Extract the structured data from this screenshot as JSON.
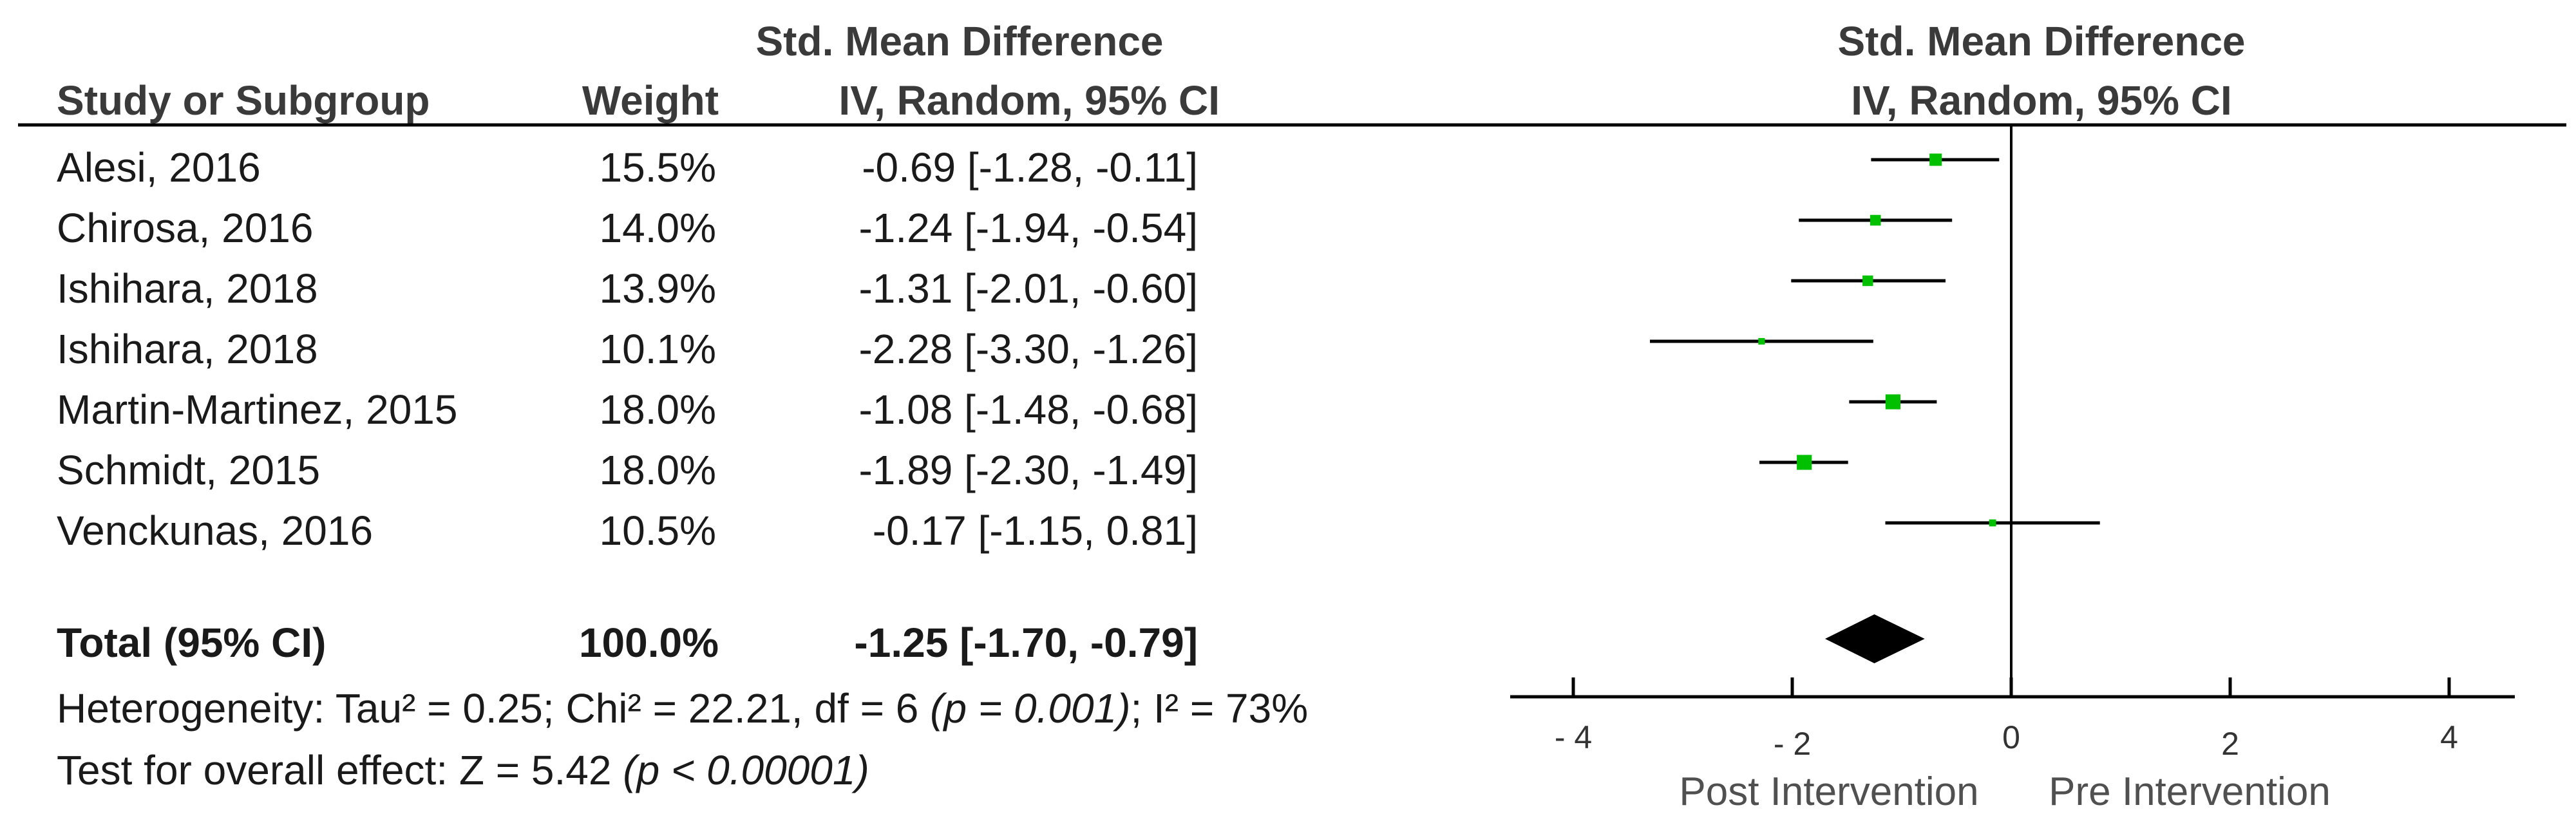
{
  "header": {
    "smd_title": "Std. Mean Difference",
    "col_study": "Study or Subgroup",
    "col_weight": "Weight",
    "col_ci": "IV, Random, 95% CI",
    "plot_title": "Std. Mean Difference",
    "plot_subtitle": "IV, Random, 95% CI"
  },
  "studies": [
    {
      "name": "Alesi, 2016",
      "weight": "15.5%",
      "ci_text": "-0.69 [-1.28, -0.11]"
    },
    {
      "name": "Chirosa, 2016",
      "weight": "14.0%",
      "ci_text": "-1.24 [-1.94, -0.54]"
    },
    {
      "name": "Ishihara, 2018",
      "weight": "13.9%",
      "ci_text": "-1.31 [-2.01, -0.60]"
    },
    {
      "name": "Ishihara, 2018",
      "weight": "10.1%",
      "ci_text": "-2.28 [-3.30, -1.26]"
    },
    {
      "name": "Martin-Martinez, 2015",
      "weight": "18.0%",
      "ci_text": "-1.08 [-1.48, -0.68]"
    },
    {
      "name": "Schmidt, 2015",
      "weight": "18.0%",
      "ci_text": "-1.89 [-2.30, -1.49]"
    },
    {
      "name": "Venckunas, 2016",
      "weight": "10.5%",
      "ci_text": "-0.17 [-1.15, 0.81]"
    }
  ],
  "total": {
    "label": "Total (95% CI)",
    "weight": "100.0%",
    "ci_text": "-1.25 [-1.70, -0.79]"
  },
  "heterogeneity": {
    "prefix": "Heterogeneity: Tau² = 0.25; Chi² = 22.21, df = 6 ",
    "p": "(p = 0.001)",
    "suffix": "; I² = 73%"
  },
  "overall_effect": {
    "prefix": "Test for overall effect: Z = 5.42 ",
    "p": "(p < 0.00001)"
  },
  "colors": {
    "marker": "#00c000",
    "line": "#000000",
    "diamond": "#000000"
  },
  "chart_data": {
    "type": "forest",
    "title": "Std. Mean Difference",
    "subtitle": "IV, Random, 95% CI",
    "xlim": [
      -4,
      4
    ],
    "ticks": [
      -4,
      -2,
      0,
      2,
      4
    ],
    "tick_labels": [
      "- 4",
      "- 2",
      "0",
      "2",
      "4"
    ],
    "favours_left": "Post Intervention",
    "favours_right": "Pre Intervention",
    "points": [
      {
        "study": "Alesi, 2016",
        "estimate": -0.69,
        "lower": -1.28,
        "upper": -0.11,
        "weight": 15.5
      },
      {
        "study": "Chirosa, 2016",
        "estimate": -1.24,
        "lower": -1.94,
        "upper": -0.54,
        "weight": 14.0
      },
      {
        "study": "Ishihara, 2018",
        "estimate": -1.31,
        "lower": -2.01,
        "upper": -0.6,
        "weight": 13.9
      },
      {
        "study": "Ishihara, 2018",
        "estimate": -2.28,
        "lower": -3.3,
        "upper": -1.26,
        "weight": 10.1
      },
      {
        "study": "Martin-Martinez, 2015",
        "estimate": -1.08,
        "lower": -1.48,
        "upper": -0.68,
        "weight": 18.0
      },
      {
        "study": "Schmidt, 2015",
        "estimate": -1.89,
        "lower": -2.3,
        "upper": -1.49,
        "weight": 18.0
      },
      {
        "study": "Venckunas, 2016",
        "estimate": -0.17,
        "lower": -1.15,
        "upper": 0.81,
        "weight": 10.5
      }
    ],
    "pooled": {
      "estimate": -1.25,
      "lower": -1.7,
      "upper": -0.79
    }
  }
}
